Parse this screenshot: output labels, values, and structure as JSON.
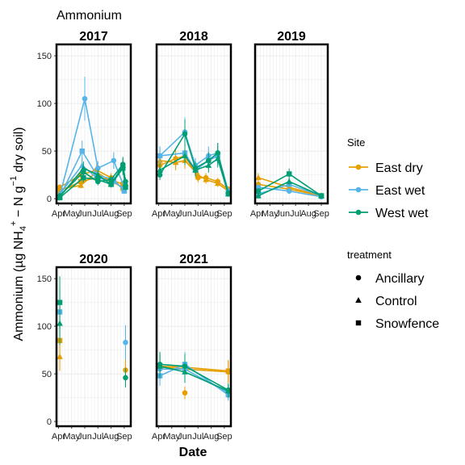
{
  "chart_data": {
    "type": "line",
    "title": "Ammonium",
    "xlabel": "Date",
    "ylabel": "Ammonium (µg NH4+ − N g−1 dry soil)",
    "ylim": [
      -5,
      162
    ],
    "y_ticks": [
      0,
      50,
      100,
      150
    ],
    "x_ticks": [
      "Apr",
      "May",
      "Jun",
      "Jul",
      "Aug",
      "Sep"
    ],
    "grid": true,
    "legend_site_title": "Site",
    "legend_treatment_title": "treatment",
    "sites": [
      {
        "name": "East dry",
        "color": "#E69F00"
      },
      {
        "name": "East wet",
        "color": "#56B4E9"
      },
      {
        "name": "West wet",
        "color": "#009E73"
      }
    ],
    "treatments": [
      {
        "name": "Ancillary",
        "shape": "circle"
      },
      {
        "name": "Control",
        "shape": "triangle"
      },
      {
        "name": "Snowfence",
        "shape": "square"
      }
    ],
    "facets": [
      {
        "year": "2017",
        "series": [
          {
            "site": "East dry",
            "treatment": "Control",
            "points": [
              [
                4.1,
                10
              ],
              [
                5.7,
                14
              ],
              [
                6.9,
                28
              ],
              [
                8.0,
                18
              ],
              [
                8.9,
                12
              ]
            ]
          },
          {
            "site": "East dry",
            "treatment": "Snowfence",
            "points": [
              [
                4.1,
                8
              ],
              [
                5.7,
                18
              ],
              [
                6.9,
                22
              ],
              [
                8.0,
                20
              ],
              [
                8.9,
                15
              ]
            ]
          },
          {
            "site": "East dry",
            "treatment": "Ancillary",
            "points": [
              [
                4.1,
                12
              ],
              [
                5.7,
                25
              ],
              [
                6.9,
                30
              ],
              [
                8.0,
                22
              ],
              [
                8.9,
                10
              ]
            ]
          },
          {
            "site": "East wet",
            "treatment": "Ancillary",
            "points": [
              [
                4.1,
                3
              ],
              [
                6.0,
                105
              ],
              [
                7.0,
                32
              ],
              [
                8.2,
                40
              ],
              [
                9.0,
                12
              ]
            ]
          },
          {
            "site": "East wet",
            "treatment": "Snowfence",
            "points": [
              [
                4.1,
                2
              ],
              [
                5.8,
                50
              ],
              [
                6.9,
                25
              ],
              [
                8.2,
                20
              ],
              [
                9.0,
                8
              ]
            ]
          },
          {
            "site": "East wet",
            "treatment": "Control",
            "points": [
              [
                4.1,
                5
              ],
              [
                5.8,
                35
              ],
              [
                6.9,
                22
              ],
              [
                8.2,
                18
              ],
              [
                9.0,
                10
              ]
            ]
          },
          {
            "site": "West wet",
            "treatment": "Control",
            "points": [
              [
                4.1,
                2
              ],
              [
                5.9,
                32
              ],
              [
                7.0,
                25
              ],
              [
                8.0,
                15
              ],
              [
                8.9,
                35
              ],
              [
                9.1,
                16
              ]
            ]
          },
          {
            "site": "West wet",
            "treatment": "Snowfence",
            "points": [
              [
                4.1,
                1
              ],
              [
                5.9,
                22
              ],
              [
                7.0,
                20
              ],
              [
                8.0,
                15
              ],
              [
                8.9,
                32
              ],
              [
                9.1,
                12
              ]
            ]
          },
          {
            "site": "West wet",
            "treatment": "Ancillary",
            "points": [
              [
                4.1,
                3
              ],
              [
                5.9,
                28
              ],
              [
                7.0,
                18
              ],
              [
                8.0,
                20
              ],
              [
                8.9,
                36
              ],
              [
                9.1,
                18
              ]
            ]
          }
        ]
      },
      {
        "year": "2018",
        "series": [
          {
            "site": "East dry",
            "treatment": "Ancillary",
            "points": [
              [
                4.1,
                35
              ],
              [
                5.3,
                42
              ],
              [
                6.0,
                45
              ],
              [
                7.0,
                22
              ],
              [
                7.6,
                22
              ],
              [
                8.5,
                18
              ],
              [
                9.3,
                10
              ]
            ]
          },
          {
            "site": "East dry",
            "treatment": "Control",
            "points": [
              [
                4.1,
                40
              ],
              [
                5.3,
                38
              ],
              [
                6.0,
                40
              ],
              [
                7.0,
                25
              ],
              [
                7.6,
                20
              ],
              [
                8.5,
                16
              ],
              [
                9.3,
                8
              ]
            ]
          },
          {
            "site": "East wet",
            "treatment": "Ancillary",
            "points": [
              [
                4.1,
                45
              ],
              [
                6.0,
                70
              ],
              [
                6.8,
                35
              ],
              [
                7.8,
                45
              ],
              [
                8.5,
                48
              ],
              [
                9.3,
                8
              ]
            ]
          },
          {
            "site": "East wet",
            "treatment": "Snowfence",
            "points": [
              [
                4.1,
                45
              ],
              [
                6.0,
                48
              ],
              [
                6.8,
                30
              ],
              [
                7.8,
                40
              ],
              [
                8.5,
                45
              ],
              [
                9.3,
                5
              ]
            ]
          },
          {
            "site": "West wet",
            "treatment": "Ancillary",
            "points": [
              [
                4.1,
                25
              ],
              [
                6.0,
                68
              ],
              [
                6.8,
                32
              ],
              [
                7.8,
                40
              ],
              [
                8.5,
                48
              ],
              [
                9.3,
                6
              ]
            ]
          },
          {
            "site": "West wet",
            "treatment": "Control",
            "points": [
              [
                4.1,
                30
              ],
              [
                6.0,
                45
              ],
              [
                6.8,
                30
              ],
              [
                7.8,
                35
              ],
              [
                8.5,
                42
              ],
              [
                9.3,
                5
              ]
            ]
          }
        ]
      },
      {
        "year": "2019",
        "series": [
          {
            "site": "East dry",
            "treatment": "Control",
            "points": [
              [
                4.1,
                22
              ],
              [
                6.5,
                12
              ],
              [
                9.0,
                3
              ]
            ]
          },
          {
            "site": "East dry",
            "treatment": "Ancillary",
            "points": [
              [
                4.1,
                15
              ],
              [
                6.5,
                10
              ],
              [
                9.0,
                3
              ]
            ]
          },
          {
            "site": "East wet",
            "treatment": "Ancillary",
            "points": [
              [
                4.1,
                12
              ],
              [
                6.5,
                8
              ],
              [
                9.0,
                2
              ]
            ]
          },
          {
            "site": "East wet",
            "treatment": "Snowfence",
            "points": [
              [
                4.1,
                5
              ],
              [
                6.5,
                15
              ],
              [
                9.0,
                3
              ]
            ]
          },
          {
            "site": "West wet",
            "treatment": "Snowfence",
            "points": [
              [
                4.1,
                8
              ],
              [
                6.5,
                26
              ],
              [
                9.0,
                3
              ]
            ]
          },
          {
            "site": "West wet",
            "treatment": "Control",
            "points": [
              [
                4.1,
                3
              ],
              [
                6.5,
                18
              ],
              [
                9.0,
                3
              ]
            ]
          }
        ]
      },
      {
        "year": "2020",
        "series": [
          {
            "site": "East dry",
            "treatment": "Control",
            "points": [
              [
                4.1,
                68
              ]
            ]
          },
          {
            "site": "East dry",
            "treatment": "Snowfence",
            "points": [
              [
                4.1,
                85
              ]
            ]
          },
          {
            "site": "East dry",
            "treatment": "Ancillary",
            "points": [
              [
                9.1,
                54
              ]
            ]
          },
          {
            "site": "East wet",
            "treatment": "Snowfence",
            "points": [
              [
                4.1,
                115
              ]
            ]
          },
          {
            "site": "East wet",
            "treatment": "Ancillary",
            "points": [
              [
                9.1,
                83
              ]
            ]
          },
          {
            "site": "West wet",
            "treatment": "Snowfence",
            "points": [
              [
                4.1,
                125
              ]
            ]
          },
          {
            "site": "West wet",
            "treatment": "Control",
            "points": [
              [
                4.1,
                103
              ]
            ]
          },
          {
            "site": "West wet",
            "treatment": "Ancillary",
            "points": [
              [
                9.1,
                46
              ]
            ]
          }
        ]
      },
      {
        "year": "2021",
        "series": [
          {
            "site": "East dry",
            "treatment": "Ancillary",
            "points": [
              [
                4.1,
                57
              ],
              [
                6.0,
                55
              ],
              [
                9.3,
                52
              ]
            ]
          },
          {
            "site": "East dry",
            "treatment": "Snowfence",
            "points": [
              [
                4.1,
                58
              ],
              [
                6.0,
                57
              ],
              [
                9.3,
                53
              ]
            ]
          },
          {
            "site": "East dry",
            "treatment": "Ancillary",
            "points": [
              [
                6.0,
                30
              ]
            ]
          },
          {
            "site": "East wet",
            "treatment": "Snowfence",
            "points": [
              [
                4.1,
                48
              ],
              [
                6.0,
                60
              ],
              [
                9.3,
                28
              ]
            ]
          },
          {
            "site": "East wet",
            "treatment": "Ancillary",
            "points": [
              [
                4.1,
                55
              ],
              [
                6.0,
                55
              ],
              [
                9.3,
                30
              ]
            ]
          },
          {
            "site": "West wet",
            "treatment": "Ancillary",
            "points": [
              [
                4.1,
                60
              ],
              [
                6.0,
                58
              ],
              [
                9.3,
                33
              ]
            ]
          },
          {
            "site": "West wet",
            "treatment": "Control",
            "points": [
              [
                4.1,
                58
              ],
              [
                6.0,
                52
              ],
              [
                9.3,
                32
              ]
            ]
          }
        ]
      }
    ]
  }
}
